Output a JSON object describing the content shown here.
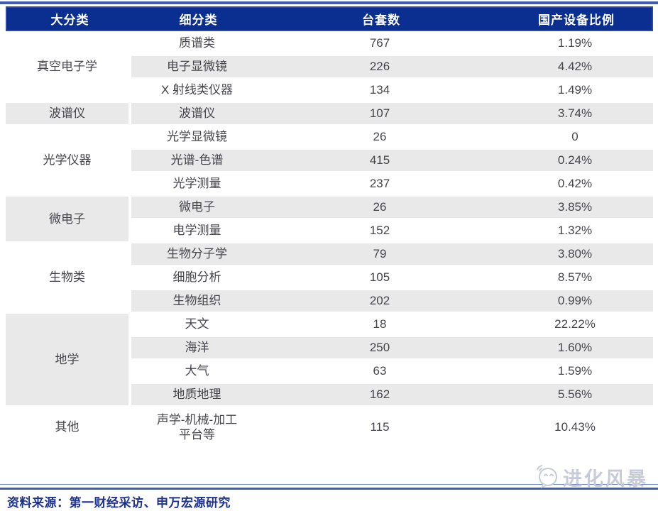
{
  "chart_data": {
    "type": "table",
    "columns": [
      "大分类",
      "细分类",
      "台套数",
      "国产设备比例"
    ],
    "groups": [
      {
        "category": "真空电子学",
        "rows": [
          {
            "subcategory": "质谱类",
            "units": "767",
            "ratio": "1.19%"
          },
          {
            "subcategory": "电子显微镜",
            "units": "226",
            "ratio": "4.42%"
          },
          {
            "subcategory": "X 射线类仪器",
            "units": "134",
            "ratio": "1.49%"
          }
        ]
      },
      {
        "category": "波谱仪",
        "rows": [
          {
            "subcategory": "波谱仪",
            "units": "107",
            "ratio": "3.74%"
          }
        ]
      },
      {
        "category": "光学仪器",
        "rows": [
          {
            "subcategory": "光学显微镜",
            "units": "26",
            "ratio": "0"
          },
          {
            "subcategory": "光谱-色谱",
            "units": "415",
            "ratio": "0.24%"
          },
          {
            "subcategory": "光学测量",
            "units": "237",
            "ratio": "0.42%"
          }
        ]
      },
      {
        "category": "微电子",
        "rows": [
          {
            "subcategory": "微电子",
            "units": "26",
            "ratio": "3.85%"
          },
          {
            "subcategory": "电学测量",
            "units": "152",
            "ratio": "1.32%"
          }
        ]
      },
      {
        "category": "生物类",
        "rows": [
          {
            "subcategory": "生物分子学",
            "units": "79",
            "ratio": "3.80%"
          },
          {
            "subcategory": "细胞分析",
            "units": "105",
            "ratio": "8.57%"
          },
          {
            "subcategory": "生物组织",
            "units": "202",
            "ratio": "0.99%"
          }
        ]
      },
      {
        "category": "地学",
        "rows": [
          {
            "subcategory": "天文",
            "units": "18",
            "ratio": "22.22%"
          },
          {
            "subcategory": "海洋",
            "units": "250",
            "ratio": "1.60%"
          },
          {
            "subcategory": "大气",
            "units": "63",
            "ratio": "1.59%"
          },
          {
            "subcategory": "地质地理",
            "units": "162",
            "ratio": "5.56%"
          }
        ]
      },
      {
        "category": "其他",
        "rows": [
          {
            "subcategory": "声学-机械-加工\n平台等",
            "units": "115",
            "ratio": "10.43%"
          }
        ]
      }
    ]
  },
  "footer": {
    "source": "资料来源：第一财经采访、申万宏源研究"
  },
  "watermark": {
    "text": "进化风暴"
  },
  "colors": {
    "header_bg": "#0a2f90",
    "header_border": "#2c49a9",
    "header_text": "#ffffff",
    "stripe_gray": "#e9e9e9",
    "body_text": "#45454d",
    "rule_blue": "#3c5fb4",
    "rule_thin": "#6c86c8",
    "footer_text": "#1e3390",
    "watermark_gray": "#c3c9d5"
  }
}
